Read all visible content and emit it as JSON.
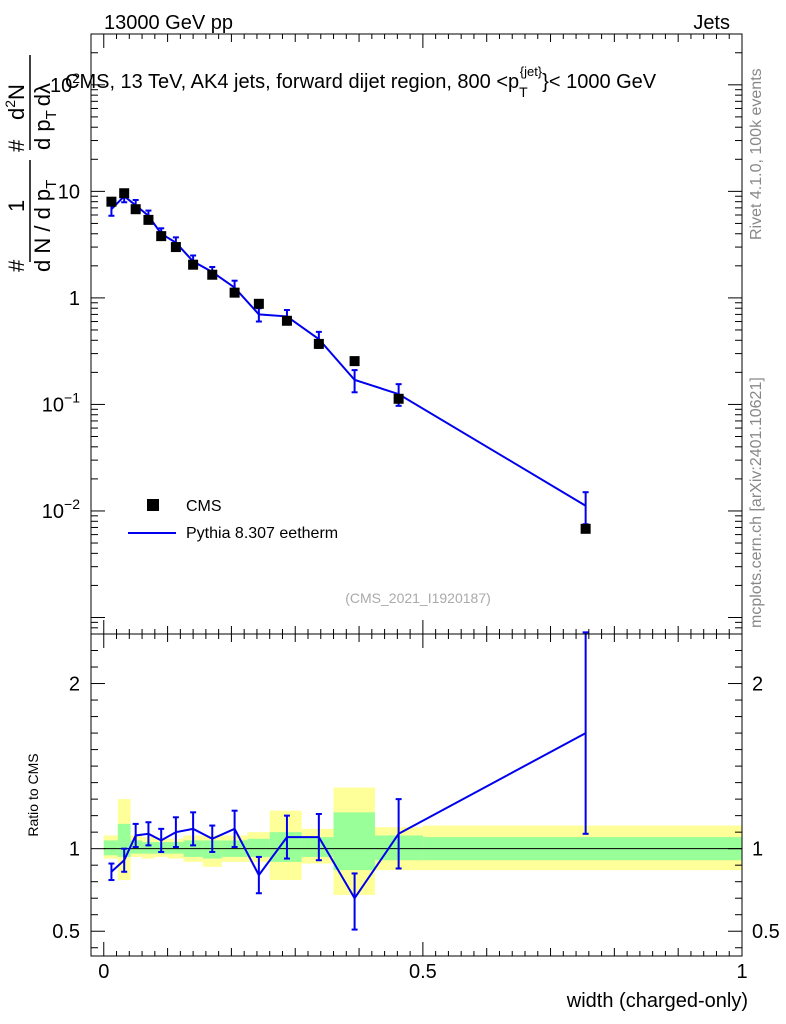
{
  "header": {
    "left": "13000 GeV pp",
    "right": "Jets"
  },
  "side": {
    "rivet": "Rivet 4.1.0,  100k events",
    "mcplots": "mcplots.cern.ch [arXiv:2401.10621]"
  },
  "watermark": "(CMS_2021_I1920187)",
  "colors": {
    "data": "#000000",
    "mc": "#0000ee",
    "band_inner": "#99ff99",
    "band_outer": "#ffff99"
  },
  "chart_data": [
    {
      "type": "scatter",
      "title": "CMS, 13 TeV, AK4 jets, forward dijet region, 800 <p",
      "title_sup": "{jet}",
      "title_sub": "T",
      "title_end": "}< 1000 GeV",
      "ylabel_parts": [
        "#",
        "1",
        "d N / d p",
        "T",
        "#",
        "d",
        "2",
        "N",
        "d p",
        "T",
        "dλ"
      ],
      "yscale": "log",
      "ylim": [
        0.0007,
        300
      ],
      "xlim": [
        -0.02,
        1.0
      ],
      "yticks": [
        {
          "v": 0.01,
          "label": "10",
          "exp": "−2"
        },
        {
          "v": 0.1,
          "label": "10",
          "exp": "−1"
        },
        {
          "v": 1,
          "label": "1",
          "exp": ""
        },
        {
          "v": 10,
          "label": "10",
          "exp": ""
        },
        {
          "v": 100,
          "label": "10",
          "exp": "2"
        }
      ],
      "legend": [
        {
          "name": "CMS",
          "marker": "square"
        },
        {
          "name": "Pythia 8.307 eetherm",
          "marker": "line"
        }
      ],
      "series": [
        {
          "name": "CMS",
          "x": [
            0.012,
            0.032,
            0.05,
            0.07,
            0.09,
            0.113,
            0.14,
            0.17,
            0.205,
            0.243,
            0.287,
            0.337,
            0.393,
            0.462,
            0.755
          ],
          "values": [
            8.0,
            9.6,
            6.8,
            5.4,
            3.8,
            3.0,
            2.05,
            1.65,
            1.12,
            0.88,
            0.61,
            0.37,
            0.255,
            0.113,
            0.0068
          ]
        },
        {
          "name": "Pythia 8.307 eetherm",
          "x": [
            0.012,
            0.032,
            0.05,
            0.07,
            0.09,
            0.113,
            0.14,
            0.17,
            0.205,
            0.243,
            0.287,
            0.337,
            0.393,
            0.462,
            0.755
          ],
          "values": [
            6.8,
            9.0,
            7.4,
            5.9,
            4.0,
            3.3,
            2.2,
            1.75,
            1.25,
            0.7,
            0.67,
            0.41,
            0.17,
            0.125,
            0.0112
          ],
          "err_lo": [
            5.9,
            7.9,
            6.6,
            5.2,
            3.5,
            2.9,
            1.95,
            1.55,
            1.07,
            0.6,
            0.58,
            0.34,
            0.13,
            0.097,
            0.0075
          ],
          "err_hi": [
            7.7,
            10.2,
            8.3,
            6.6,
            4.5,
            3.7,
            2.5,
            1.95,
            1.45,
            0.8,
            0.77,
            0.48,
            0.21,
            0.155,
            0.015
          ]
        }
      ]
    },
    {
      "type": "line",
      "ylabel": "Ratio to CMS",
      "xlabel": "width (charged-only)",
      "ylim": [
        0.35,
        2.3
      ],
      "xlim": [
        -0.02,
        1.0
      ],
      "yticks": [
        {
          "v": 0.5,
          "label": "0.5"
        },
        {
          "v": 1,
          "label": "1"
        },
        {
          "v": 2,
          "label": "2"
        }
      ],
      "xticks": [
        {
          "v": 0,
          "label": "0"
        },
        {
          "v": 0.5,
          "label": "0.5"
        },
        {
          "v": 1,
          "label": "1"
        }
      ],
      "bands": [
        {
          "x0": 0.0,
          "x1": 0.022,
          "g": [
            0.96,
            1.05
          ],
          "y": [
            0.94,
            1.08
          ]
        },
        {
          "x0": 0.022,
          "x1": 0.042,
          "g": [
            0.95,
            1.15
          ],
          "y": [
            0.81,
            1.3
          ]
        },
        {
          "x0": 0.042,
          "x1": 0.06,
          "g": [
            0.97,
            1.05
          ],
          "y": [
            0.95,
            1.08
          ]
        },
        {
          "x0": 0.06,
          "x1": 0.08,
          "g": [
            0.97,
            1.04
          ],
          "y": [
            0.94,
            1.07
          ]
        },
        {
          "x0": 0.08,
          "x1": 0.1,
          "g": [
            0.97,
            1.04
          ],
          "y": [
            0.95,
            1.06
          ]
        },
        {
          "x0": 0.1,
          "x1": 0.125,
          "g": [
            0.97,
            1.04
          ],
          "y": [
            0.94,
            1.06
          ]
        },
        {
          "x0": 0.125,
          "x1": 0.155,
          "g": [
            0.95,
            1.05
          ],
          "y": [
            0.92,
            1.08
          ]
        },
        {
          "x0": 0.155,
          "x1": 0.185,
          "g": [
            0.94,
            1.05
          ],
          "y": [
            0.89,
            1.08
          ]
        },
        {
          "x0": 0.185,
          "x1": 0.225,
          "g": [
            0.95,
            1.05
          ],
          "y": [
            0.92,
            1.08
          ]
        },
        {
          "x0": 0.225,
          "x1": 0.26,
          "g": [
            0.95,
            1.06
          ],
          "y": [
            0.92,
            1.1
          ]
        },
        {
          "x0": 0.26,
          "x1": 0.31,
          "g": [
            0.92,
            1.1
          ],
          "y": [
            0.81,
            1.23
          ]
        },
        {
          "x0": 0.31,
          "x1": 0.36,
          "g": [
            0.95,
            1.07
          ],
          "y": [
            0.91,
            1.12
          ]
        },
        {
          "x0": 0.36,
          "x1": 0.425,
          "g": [
            0.87,
            1.22
          ],
          "y": [
            0.72,
            1.37
          ]
        },
        {
          "x0": 0.425,
          "x1": 0.5,
          "g": [
            0.93,
            1.08
          ],
          "y": [
            0.87,
            1.13
          ]
        },
        {
          "x0": 0.5,
          "x1": 1.0,
          "g": [
            0.93,
            1.07
          ],
          "y": [
            0.87,
            1.14
          ]
        }
      ],
      "series": [
        {
          "name": "Pythia 8.307 eetherm / CMS",
          "x": [
            0.012,
            0.032,
            0.05,
            0.07,
            0.09,
            0.113,
            0.14,
            0.17,
            0.205,
            0.243,
            0.287,
            0.337,
            0.393,
            0.462,
            0.755
          ],
          "values": [
            0.86,
            0.93,
            1.08,
            1.09,
            1.05,
            1.1,
            1.12,
            1.06,
            1.12,
            0.84,
            1.07,
            1.07,
            0.7,
            1.09,
            1.7
          ],
          "err_lo": [
            0.81,
            0.86,
            1.01,
            1.02,
            0.98,
            1.01,
            1.02,
            0.98,
            1.01,
            0.73,
            0.94,
            0.93,
            0.51,
            0.88,
            1.09
          ],
          "err_hi": [
            0.91,
            1.0,
            1.15,
            1.16,
            1.12,
            1.19,
            1.22,
            1.14,
            1.23,
            0.95,
            1.2,
            1.21,
            0.85,
            1.3,
            2.31
          ]
        }
      ]
    }
  ]
}
